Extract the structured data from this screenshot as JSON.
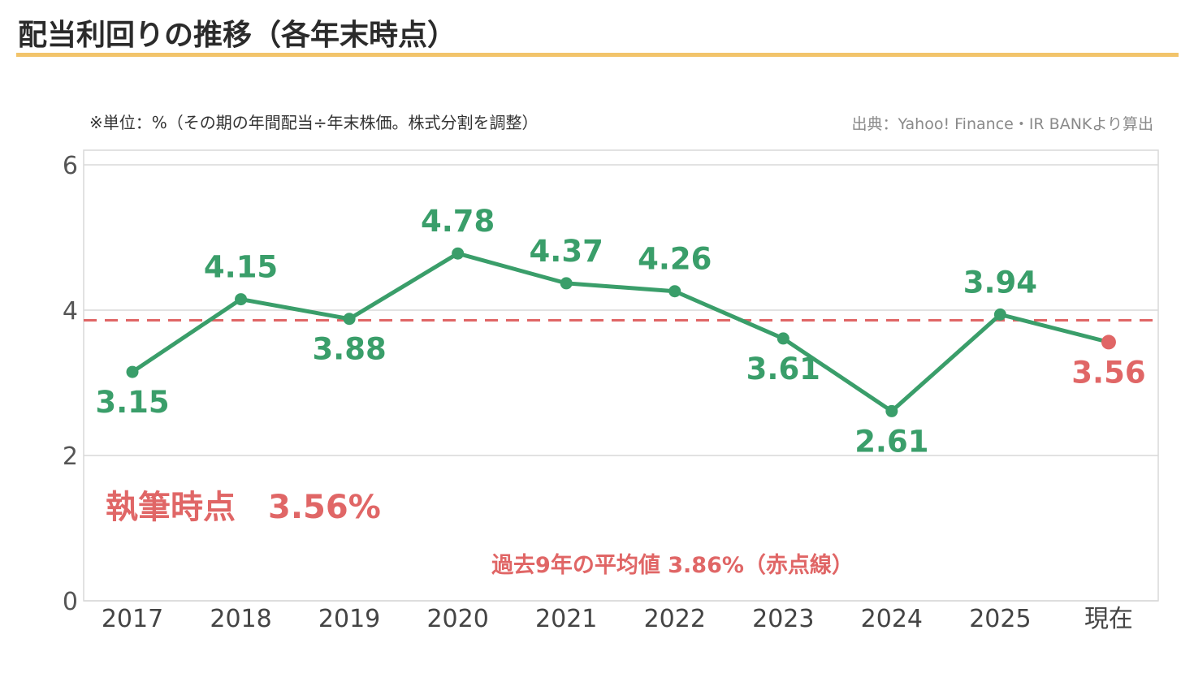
{
  "header": {
    "title": "配当利回りの推移（各年末時点）"
  },
  "notes": {
    "unit": "※単位：%（その期の年間配当÷年末株価。株式分割を調整）",
    "source": "出典：Yahoo! Finance・IR BANKより算出"
  },
  "chart_data": {
    "type": "line",
    "categories": [
      "2017",
      "2018",
      "2019",
      "2020",
      "2021",
      "2022",
      "2023",
      "2024",
      "2025",
      "現在"
    ],
    "series": [
      {
        "values": [
          3.15,
          4.15,
          3.88,
          4.78,
          4.37,
          4.26,
          3.61,
          2.61,
          3.94,
          3.56
        ],
        "labels": [
          "3.15",
          "4.15",
          "3.88",
          "4.78",
          "4.37",
          "4.26",
          "3.61",
          "2.61",
          "3.94",
          "3.56"
        ]
      }
    ],
    "ylim": [
      0,
      6
    ],
    "yticks": [
      0,
      2,
      4,
      6
    ],
    "reference_line": {
      "value": 3.86,
      "style": "dashed",
      "color": "#e06666"
    },
    "grid": true,
    "colors": {
      "line": "#3a9e6a",
      "current": "#e06666",
      "average": "#e06666"
    },
    "annotations": {
      "current": "執筆時点　3.56%",
      "average": "過去9年の平均値 3.86%（赤点線）"
    }
  }
}
